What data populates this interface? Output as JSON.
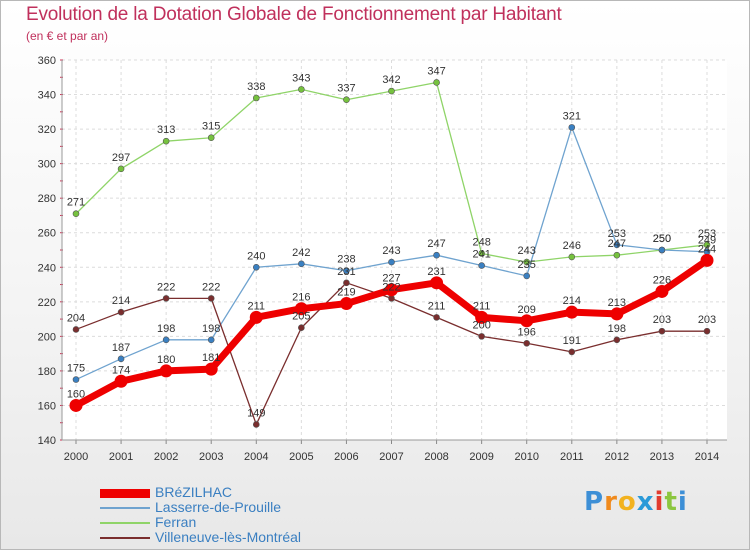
{
  "header": {
    "title": "Evolution de la Dotation Globale de Fonctionnement par Habitant",
    "subtitle": "(en € et par an)"
  },
  "logo": {
    "letters": [
      "P",
      "r",
      "o",
      "x",
      "i",
      "t",
      "i"
    ],
    "colors": [
      "#3d8fd6",
      "#f08a1c",
      "#f2b21f",
      "#2b9ad8",
      "#e23b2e",
      "#8cc63f",
      "#3d8fd6"
    ]
  },
  "chart_data": {
    "type": "line",
    "title": "Evolution de la Dotation Globale de Fonctionnement par Habitant",
    "subtitle": "(en € et par an)",
    "xlabel": "",
    "ylabel": "",
    "ylim": [
      140,
      360
    ],
    "yticks": [
      140,
      160,
      180,
      200,
      220,
      240,
      260,
      280,
      300,
      320,
      340,
      360
    ],
    "grid": true,
    "legend_position": "bottom-left",
    "x": [
      "2000",
      "2001",
      "2002",
      "2003",
      "2004",
      "2005",
      "2006",
      "2007",
      "2008",
      "2009",
      "2010",
      "2011",
      "2012",
      "2013",
      "2014"
    ],
    "series": [
      {
        "name": "Ferran",
        "color": "#8fd468",
        "marker": "#76c23e",
        "width": "thin",
        "values": [
          271,
          297,
          313,
          315,
          338,
          343,
          337,
          342,
          347,
          248,
          243,
          246,
          247,
          250,
          253
        ]
      },
      {
        "name": "Lasserre-de-Prouille",
        "color": "#6fa3cf",
        "marker": "#3a80c2",
        "width": "thin",
        "values": [
          175,
          187,
          198,
          198,
          240,
          242,
          238,
          243,
          247,
          241,
          235,
          321,
          253,
          250,
          249
        ]
      },
      {
        "name": "Villeneuve-lès-Montréal",
        "color": "#7a2e2e",
        "marker": "#7a2e2e",
        "width": "thin",
        "values": [
          204,
          214,
          222,
          222,
          149,
          205,
          231,
          222,
          211,
          200,
          196,
          191,
          198,
          203,
          203
        ]
      },
      {
        "name": "BRéZILHAC",
        "color": "#ee0000",
        "marker": "#ee0000",
        "width": "thick",
        "values": [
          160,
          174,
          180,
          181,
          211,
          216,
          219,
          227,
          231,
          211,
          209,
          214,
          213,
          226,
          244
        ]
      }
    ],
    "legend_order": [
      "BRéZILHAC",
      "Lasserre-de-Prouille",
      "Ferran",
      "Villeneuve-lès-Montréal"
    ]
  }
}
